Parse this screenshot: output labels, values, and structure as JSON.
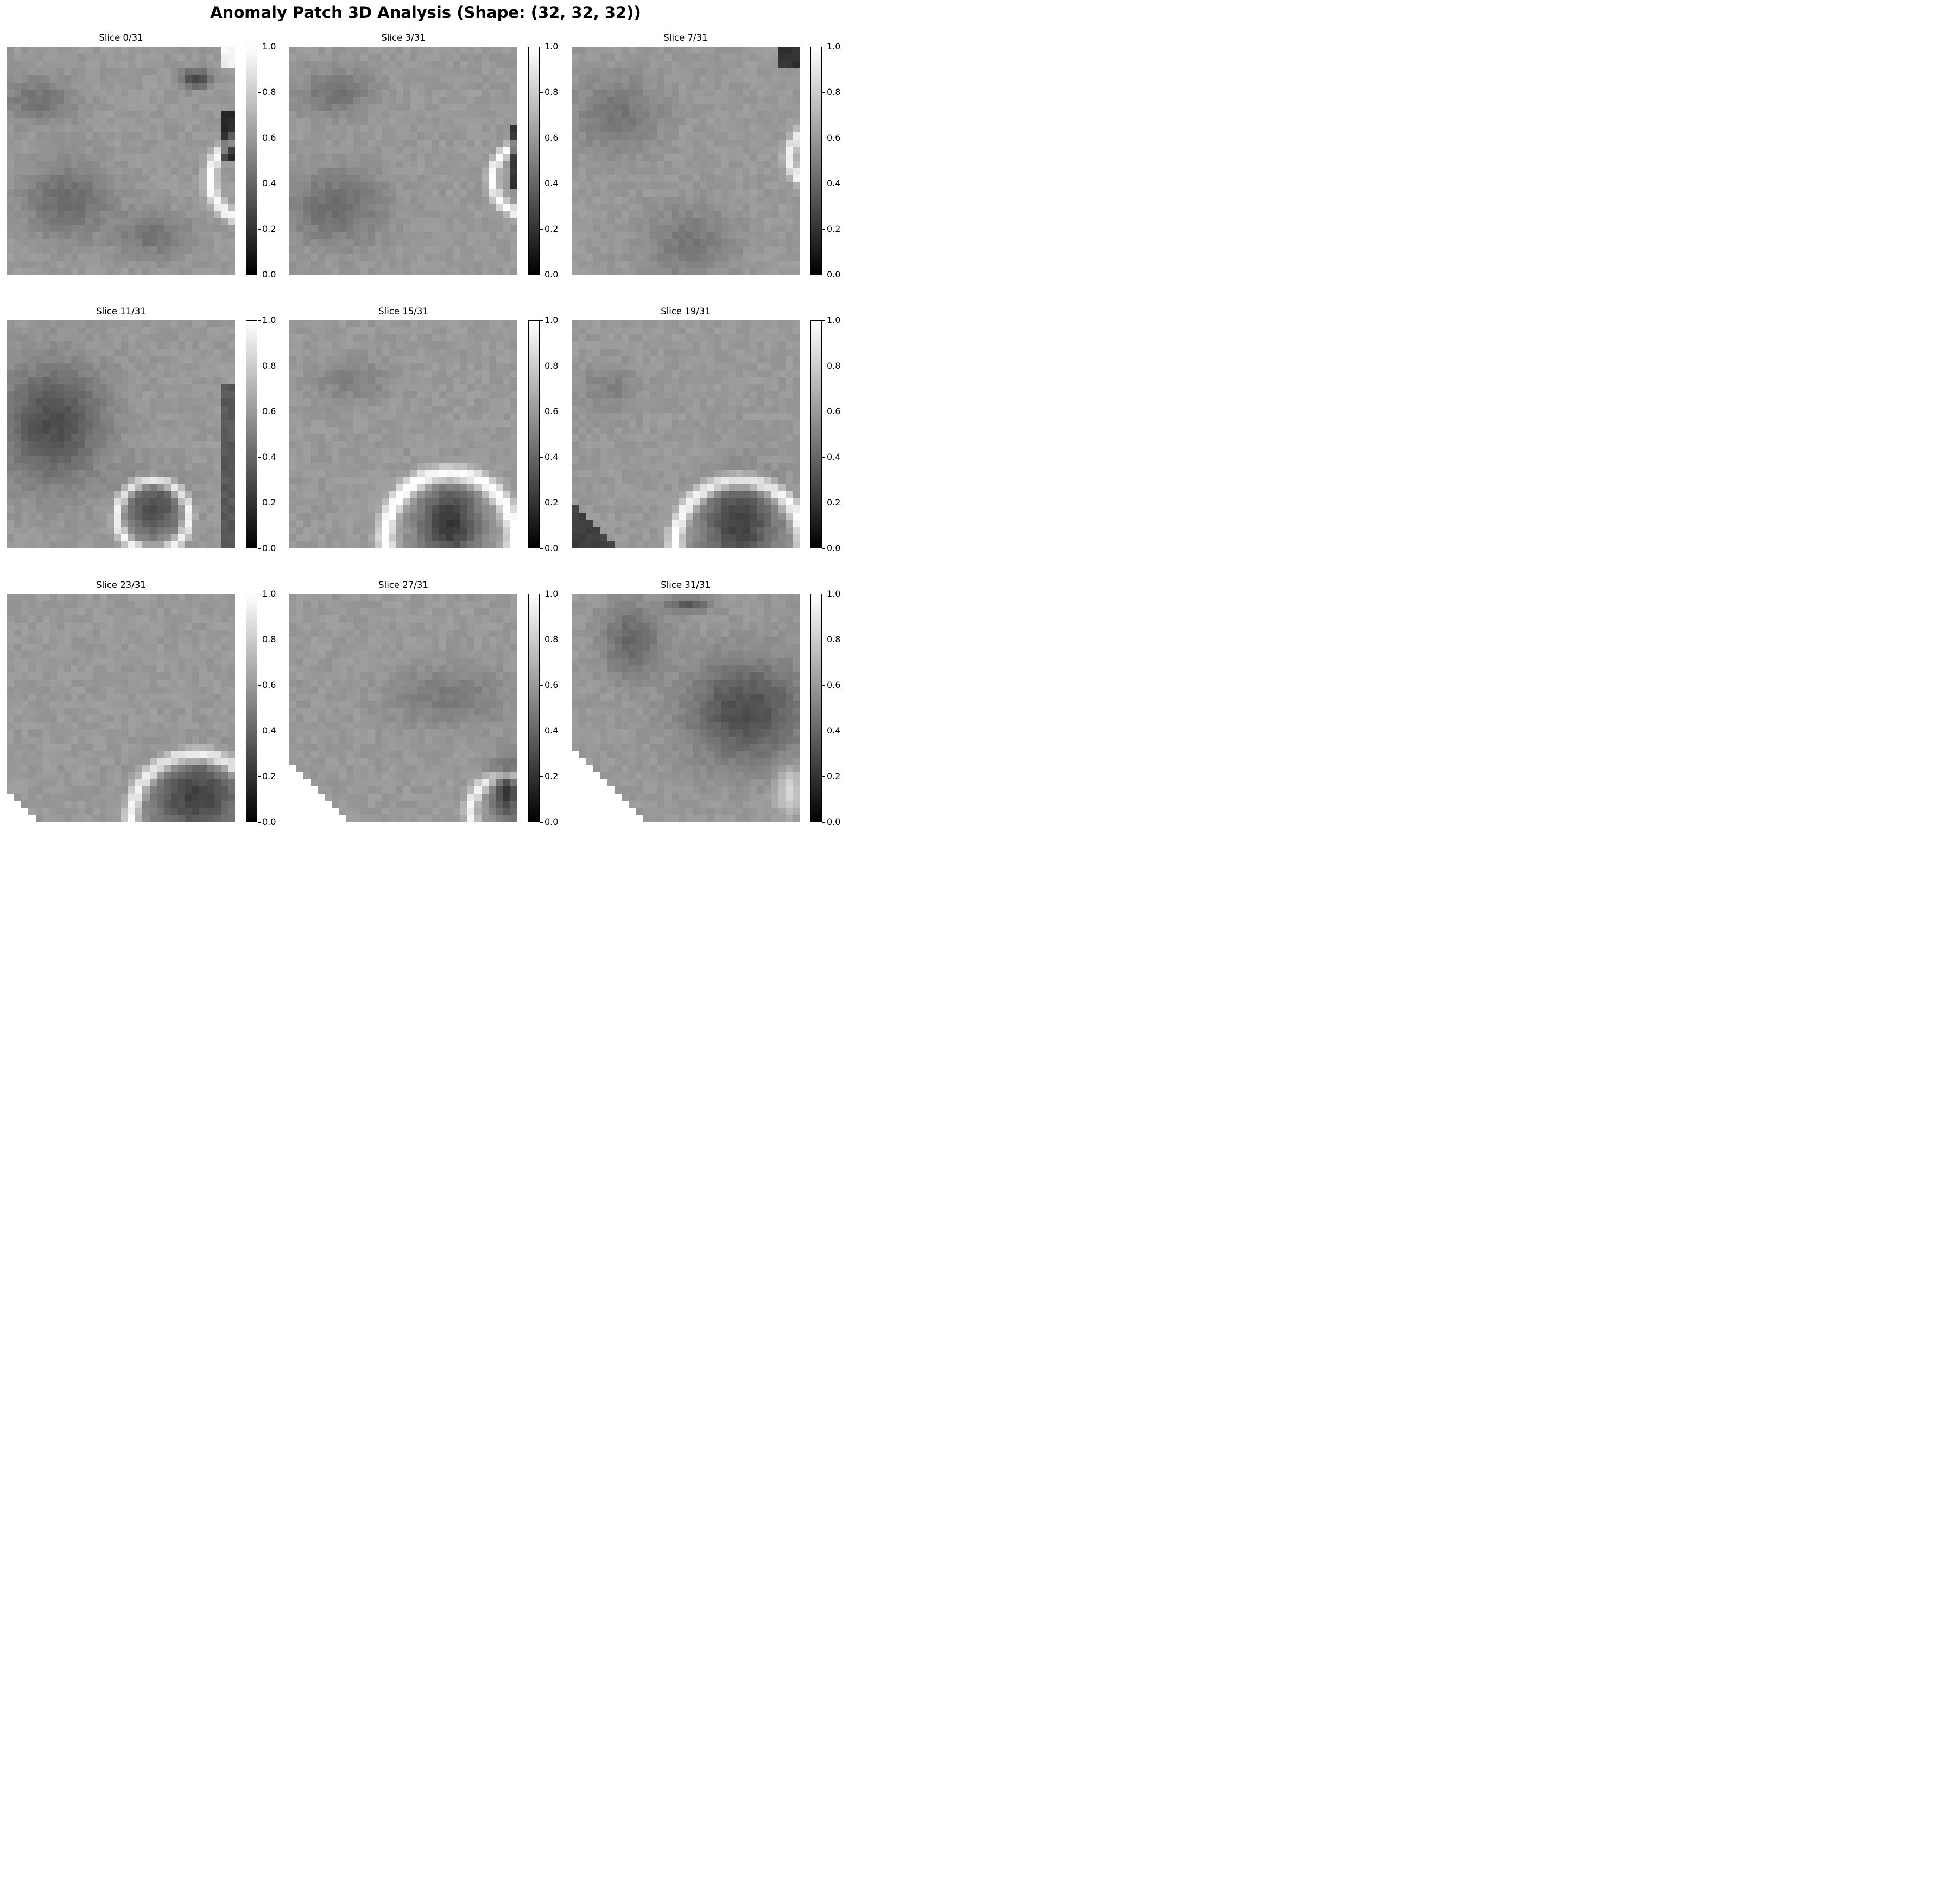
{
  "figure": {
    "title": "Anomaly Patch 3D Analysis (Shape: (32, 32, 32))"
  },
  "colorbar": {
    "ticks": [
      "0.0",
      "0.2",
      "0.4",
      "0.6",
      "0.8",
      "1.0"
    ],
    "min": 0.0,
    "max": 1.0,
    "colormap": "gray"
  },
  "patch": {
    "shape": [
      32,
      32,
      32
    ],
    "grid_size": 32
  },
  "slices": [
    {
      "title": "Slice 0/31",
      "index": 0
    },
    {
      "title": "Slice 3/31",
      "index": 3
    },
    {
      "title": "Slice 7/31",
      "index": 7
    },
    {
      "title": "Slice 11/31",
      "index": 11
    },
    {
      "title": "Slice 15/31",
      "index": 15
    },
    {
      "title": "Slice 19/31",
      "index": 19
    },
    {
      "title": "Slice 23/31",
      "index": 23
    },
    {
      "title": "Slice 27/31",
      "index": 27
    },
    {
      "title": "Slice 31/31",
      "index": 31
    }
  ]
}
